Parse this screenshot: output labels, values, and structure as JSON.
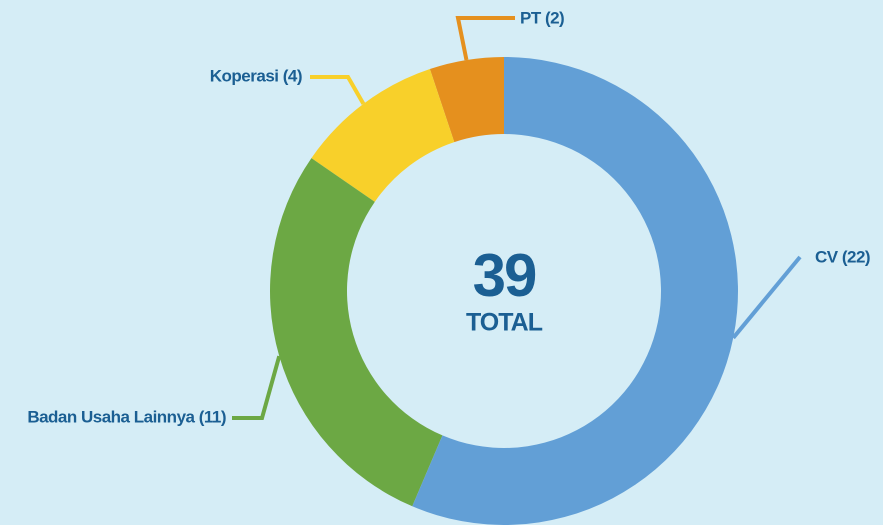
{
  "chart_data": {
    "type": "donut",
    "categories": [
      "CV",
      "Badan Usaha Lainnya",
      "Koperasi",
      "PT"
    ],
    "values": [
      22,
      11,
      4,
      2
    ],
    "value_labels": [
      "CV (22)",
      "Badan Usaha Lainnya (11)",
      "Koperasi (4)",
      "PT (2)"
    ],
    "colors": [
      "#629fd6",
      "#6ca844",
      "#f8d02a",
      "#e5901e"
    ],
    "total": 39,
    "total_label": "TOTAL"
  }
}
